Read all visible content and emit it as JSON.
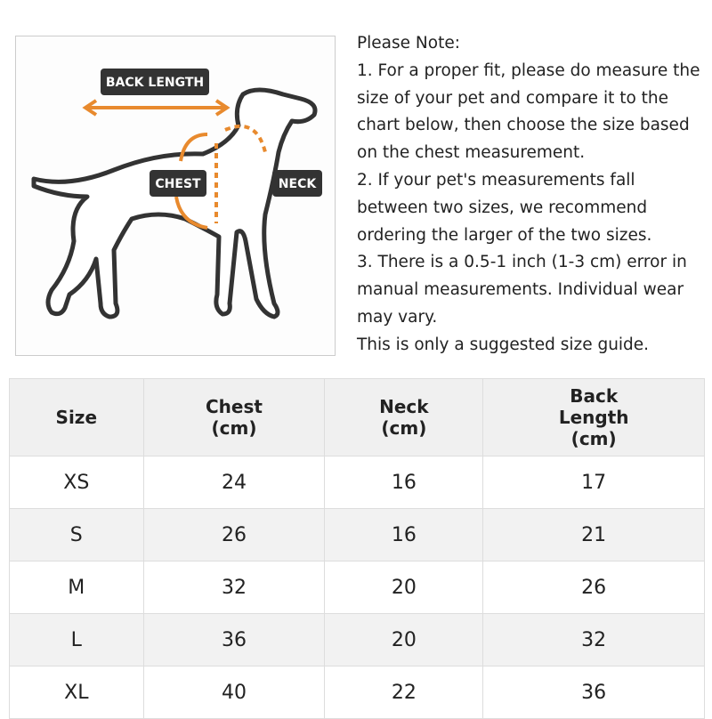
{
  "figure": {
    "labels": {
      "back_length": "BACK LENGTH",
      "chest": "CHEST",
      "neck": "NECK"
    }
  },
  "notes": {
    "heading": "Please Note:",
    "items": [
      "1. For a proper fit, please do measure the size of your pet and compare it to the chart below, then choose the size based on the chest measurement.",
      "2. If your pet's measurements fall between two sizes, we recommend ordering the larger of the two sizes.",
      "3. There is a 0.5-1 inch (1-3 cm) error in manual measurements. Individual wear may vary."
    ],
    "footer": "This is only a suggested size guide."
  },
  "table": {
    "header": [
      "Size",
      "Chest\n(cm)",
      "Neck\n(cm)",
      "Back\nLength\n(cm)"
    ],
    "rows": [
      [
        "XS",
        24,
        16,
        17
      ],
      [
        "S",
        26,
        16,
        21
      ],
      [
        "M",
        32,
        20,
        26
      ],
      [
        "L",
        36,
        20,
        32
      ],
      [
        "XL",
        40,
        22,
        36
      ]
    ]
  }
}
